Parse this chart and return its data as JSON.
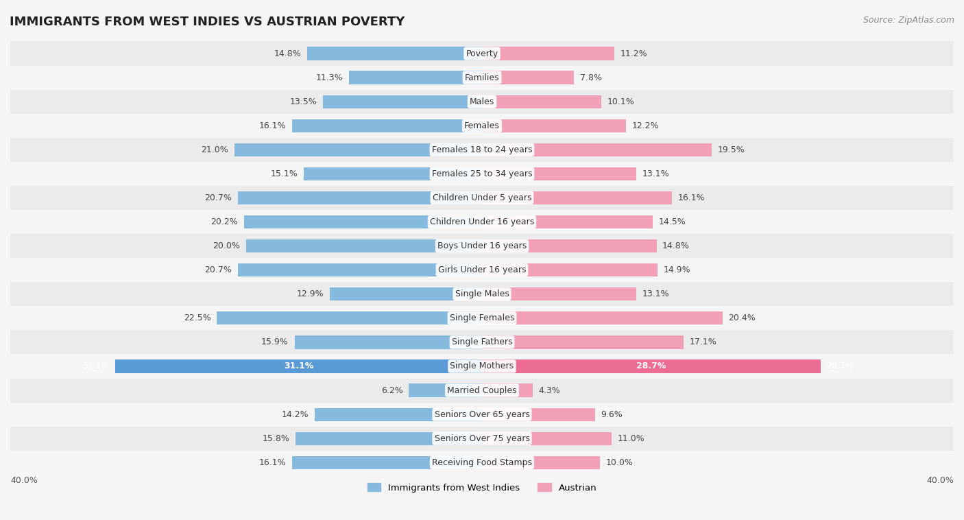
{
  "title": "IMMIGRANTS FROM WEST INDIES VS AUSTRIAN POVERTY",
  "source": "Source: ZipAtlas.com",
  "categories": [
    "Poverty",
    "Families",
    "Males",
    "Females",
    "Females 18 to 24 years",
    "Females 25 to 34 years",
    "Children Under 5 years",
    "Children Under 16 years",
    "Boys Under 16 years",
    "Girls Under 16 years",
    "Single Males",
    "Single Females",
    "Single Fathers",
    "Single Mothers",
    "Married Couples",
    "Seniors Over 65 years",
    "Seniors Over 75 years",
    "Receiving Food Stamps"
  ],
  "west_indies": [
    14.8,
    11.3,
    13.5,
    16.1,
    21.0,
    15.1,
    20.7,
    20.2,
    20.0,
    20.7,
    12.9,
    22.5,
    15.9,
    31.1,
    6.2,
    14.2,
    15.8,
    16.1
  ],
  "austrian": [
    11.2,
    7.8,
    10.1,
    12.2,
    19.5,
    13.1,
    16.1,
    14.5,
    14.8,
    14.9,
    13.1,
    20.4,
    17.1,
    28.7,
    4.3,
    9.6,
    11.0,
    10.0
  ],
  "west_indies_color": "#85BADE",
  "austrian_color": "#F2A0B8",
  "single_mothers_wi_color": "#5B9BD5",
  "single_mothers_au_color": "#EC6D94",
  "background_row_odd": "#EBEBEB",
  "background_row_even": "#F5F5F5",
  "bar_height": 0.55,
  "xlim": 40.0,
  "label_fontsize": 9.0,
  "title_fontsize": 13,
  "source_fontsize": 9
}
